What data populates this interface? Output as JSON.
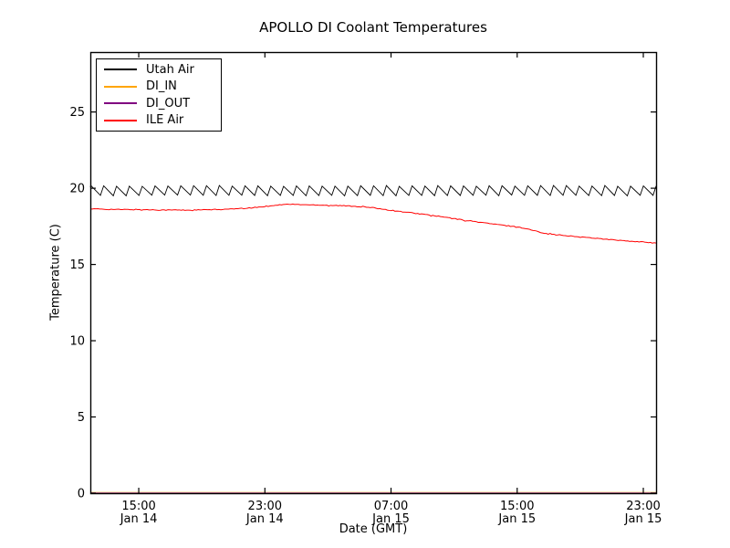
{
  "figure": {
    "title": "APOLLO DI Coolant Temperatures",
    "background": "#ffffff"
  },
  "axes": {
    "xlabel": "Date (GMT)",
    "ylabel": "Temperature (C)",
    "xlim_hours": [
      11.93,
      47.81
    ],
    "ylim": [
      0,
      28.93
    ],
    "yticks": [
      {
        "value": 0,
        "label": "0"
      },
      {
        "value": 5,
        "label": "5"
      },
      {
        "value": 10,
        "label": "10"
      },
      {
        "value": 15,
        "label": "15"
      },
      {
        "value": 20,
        "label": "20"
      },
      {
        "value": 25,
        "label": "25"
      }
    ],
    "xticks": [
      {
        "hour": 15,
        "time": "15:00",
        "date": "Jan 14"
      },
      {
        "hour": 23,
        "time": "23:00",
        "date": "Jan 14"
      },
      {
        "hour": 31,
        "time": "07:00",
        "date": "Jan 15"
      },
      {
        "hour": 39,
        "time": "15:00",
        "date": "Jan 15"
      },
      {
        "hour": 47,
        "time": "23:00",
        "date": "Jan 15"
      }
    ],
    "spine_color": "#000000"
  },
  "legend": {
    "position": "upper left",
    "items": [
      {
        "label": "Utah Air",
        "color": "#000000"
      },
      {
        "label": "DI_IN",
        "color": "#ffa500"
      },
      {
        "label": "DI_OUT",
        "color": "#800080"
      },
      {
        "label": "ILE Air",
        "color": "#ff0000"
      }
    ]
  },
  "chart_data": {
    "type": "line",
    "title": "APOLLO DI Coolant Temperatures",
    "xlabel": "Date (GMT)",
    "ylabel": "Temperature (C)",
    "x_unit": "hours since Jan 14 00:00 GMT",
    "xlim": [
      11.93,
      47.81
    ],
    "ylim": [
      0,
      28.93
    ],
    "grid": false,
    "legend_position": "upper left",
    "series": [
      {
        "name": "Utah Air",
        "color": "#000000",
        "shape": "sawtooth",
        "sawtooth": {
          "min": 19.5,
          "max": 20.18,
          "period_hours": 0.815,
          "rise_fraction": 0.25,
          "first_peak_hour": 11.96
        }
      },
      {
        "name": "DI_IN",
        "color": "#ffa500",
        "shape": "constant",
        "value": 0
      },
      {
        "name": "DI_OUT",
        "color": "#800080",
        "shape": "constant",
        "value": 0
      },
      {
        "name": "ILE Air",
        "color": "#ff0000",
        "shape": "points",
        "points": [
          [
            11.93,
            18.65
          ],
          [
            13,
            18.62
          ],
          [
            14,
            18.6
          ],
          [
            15,
            18.6
          ],
          [
            16,
            18.58
          ],
          [
            17,
            18.57
          ],
          [
            18,
            18.56
          ],
          [
            19,
            18.58
          ],
          [
            20,
            18.6
          ],
          [
            21,
            18.64
          ],
          [
            22,
            18.7
          ],
          [
            23,
            18.8
          ],
          [
            23.7,
            18.9
          ],
          [
            24.5,
            18.95
          ],
          [
            25.5,
            18.92
          ],
          [
            26.5,
            18.9
          ],
          [
            27.5,
            18.87
          ],
          [
            28.5,
            18.83
          ],
          [
            29.3,
            18.77
          ],
          [
            30,
            18.7
          ],
          [
            31,
            18.55
          ],
          [
            32,
            18.42
          ],
          [
            33,
            18.3
          ],
          [
            34,
            18.16
          ],
          [
            35,
            18.0
          ],
          [
            36,
            17.86
          ],
          [
            37,
            17.72
          ],
          [
            38,
            17.58
          ],
          [
            39,
            17.47
          ],
          [
            39.6,
            17.34
          ],
          [
            40.2,
            17.18
          ],
          [
            41,
            17.0
          ],
          [
            42,
            16.9
          ],
          [
            43,
            16.8
          ],
          [
            44,
            16.72
          ],
          [
            45,
            16.62
          ],
          [
            46,
            16.53
          ],
          [
            47,
            16.47
          ],
          [
            47.81,
            16.42
          ]
        ]
      }
    ]
  }
}
